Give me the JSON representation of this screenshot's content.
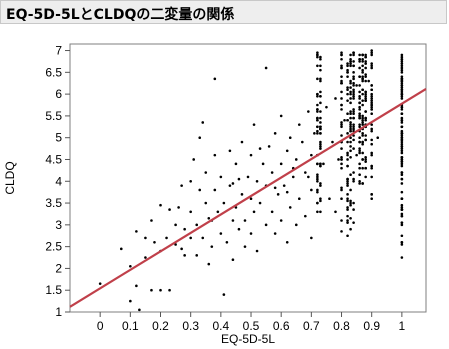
{
  "header": {
    "title": "EQ-5D-5LとCLDQの二変量の関係"
  },
  "chart_data": {
    "type": "scatter",
    "title": "EQ-5D-5LとCLDQの二変量の関係",
    "xlabel": "EQ-5D-5L",
    "ylabel": "CLDQ",
    "xlim": [
      -0.1,
      1.08
    ],
    "ylim": [
      1,
      7.15
    ],
    "x_ticks": [
      0,
      0.1,
      0.2,
      0.3,
      0.4,
      0.5,
      0.6,
      0.7,
      0.8,
      0.9,
      1
    ],
    "y_ticks": [
      1,
      1.5,
      2,
      2.5,
      3,
      3.5,
      4,
      4.5,
      5,
      5.5,
      6,
      6.5,
      7
    ],
    "x_tick_labels": [
      "0",
      "0.1",
      "0.2",
      "0.3",
      "0.4",
      "0.5",
      "0.6",
      "0.7",
      "0.8",
      "0.9",
      "1"
    ],
    "y_tick_labels": [
      "1",
      "1.5",
      "2",
      "2.5",
      "3",
      "3.5",
      "4",
      "4.5",
      "5",
      "5.5",
      "6",
      "6.5",
      "7"
    ],
    "grid": false,
    "point_color": "#000000",
    "fit_line": {
      "color": "#c0404a",
      "x": [
        -0.1,
        1.08
      ],
      "y": [
        1.12,
        6.12
      ]
    },
    "x_columns": [
      0.72,
      0.73,
      0.8,
      0.82,
      0.83,
      0.84,
      0.86,
      0.87,
      0.88,
      0.9,
      1.0
    ],
    "points": [
      [
        0,
        1.65
      ],
      [
        0.07,
        2.45
      ],
      [
        0.1,
        2.05
      ],
      [
        0.1,
        1.25
      ],
      [
        0.12,
        2.85
      ],
      [
        0.12,
        1.6
      ],
      [
        0.13,
        1.05
      ],
      [
        0.15,
        2.7
      ],
      [
        0.15,
        2.25
      ],
      [
        0.17,
        3.1
      ],
      [
        0.17,
        1.5
      ],
      [
        0.18,
        2.6
      ],
      [
        0.2,
        2.4
      ],
      [
        0.2,
        1.5
      ],
      [
        0.22,
        2.7
      ],
      [
        0.23,
        3.35
      ],
      [
        0.23,
        1.5
      ],
      [
        0.25,
        3.0
      ],
      [
        0.25,
        2.55
      ],
      [
        0.26,
        3.4
      ],
      [
        0.27,
        3.9
      ],
      [
        0.28,
        2.3
      ],
      [
        0.28,
        2.9
      ],
      [
        0.3,
        4.0
      ],
      [
        0.3,
        3.3
      ],
      [
        0.3,
        2.7
      ],
      [
        0.31,
        4.5
      ],
      [
        0.32,
        3.0
      ],
      [
        0.32,
        2.3
      ],
      [
        0.33,
        5.0
      ],
      [
        0.33,
        3.8
      ],
      [
        0.34,
        2.7
      ],
      [
        0.35,
        3.5
      ],
      [
        0.35,
        4.2
      ],
      [
        0.36,
        2.1
      ],
      [
        0.37,
        3.1
      ],
      [
        0.37,
        2.5
      ],
      [
        0.38,
        3.8
      ],
      [
        0.38,
        4.6
      ],
      [
        0.39,
        3.3
      ],
      [
        0.4,
        2.8
      ],
      [
        0.4,
        4.1
      ],
      [
        0.41,
        3.5
      ],
      [
        0.41,
        1.4
      ],
      [
        0.42,
        2.6
      ],
      [
        0.43,
        3.9
      ],
      [
        0.43,
        4.7
      ],
      [
        0.44,
        3.1
      ],
      [
        0.44,
        2.2
      ],
      [
        0.45,
        4.4
      ],
      [
        0.45,
        3.4
      ],
      [
        0.46,
        2.9
      ],
      [
        0.47,
        3.7
      ],
      [
        0.47,
        4.9
      ],
      [
        0.48,
        3.1
      ],
      [
        0.48,
        2.5
      ],
      [
        0.49,
        4.1
      ],
      [
        0.5,
        3.6
      ],
      [
        0.5,
        4.6
      ],
      [
        0.5,
        2.8
      ],
      [
        0.51,
        3.3
      ],
      [
        0.51,
        5.3
      ],
      [
        0.52,
        4.0
      ],
      [
        0.52,
        2.4
      ],
      [
        0.53,
        3.5
      ],
      [
        0.54,
        4.4
      ],
      [
        0.55,
        6.6
      ],
      [
        0.55,
        3.0
      ],
      [
        0.55,
        3.9
      ],
      [
        0.56,
        4.8
      ],
      [
        0.57,
        3.3
      ],
      [
        0.57,
        4.2
      ],
      [
        0.58,
        2.8
      ],
      [
        0.58,
        5.1
      ],
      [
        0.59,
        3.7
      ],
      [
        0.6,
        4.4
      ],
      [
        0.6,
        3.1
      ],
      [
        0.6,
        5.5
      ],
      [
        0.61,
        3.9
      ],
      [
        0.62,
        2.6
      ],
      [
        0.62,
        4.7
      ],
      [
        0.63,
        3.4
      ],
      [
        0.63,
        5.0
      ],
      [
        0.64,
        4.1
      ],
      [
        0.65,
        3.0
      ],
      [
        0.65,
        4.5
      ],
      [
        0.66,
        5.3
      ],
      [
        0.66,
        3.6
      ],
      [
        0.67,
        4.9
      ],
      [
        0.68,
        3.2
      ],
      [
        0.68,
        4.2
      ],
      [
        0.69,
        5.6
      ],
      [
        0.7,
        3.8
      ],
      [
        0.7,
        4.6
      ],
      [
        0.7,
        2.7
      ],
      [
        0.71,
        5.1
      ],
      [
        0.74,
        4.4
      ],
      [
        0.75,
        5.7
      ],
      [
        0.76,
        3.6
      ],
      [
        0.77,
        4.9
      ],
      [
        0.78,
        5.9
      ],
      [
        0.78,
        3.3
      ],
      [
        0.79,
        4.5
      ],
      [
        0.81,
        5.4
      ],
      [
        0.85,
        6.2
      ],
      [
        0.85,
        4.6
      ],
      [
        0.89,
        6.3
      ],
      [
        0.92,
        5.0
      ],
      [
        0.9,
        5.8
      ],
      [
        0.38,
        6.35
      ],
      [
        0.34,
        5.35
      ],
      [
        0.2,
        3.45
      ],
      [
        0.44,
        3.95
      ],
      [
        0.58,
        3.85
      ],
      [
        0.64,
        4.3
      ],
      [
        0.53,
        4.75
      ],
      [
        0.46,
        4.05
      ],
      [
        0.27,
        2.45
      ],
      [
        0.36,
        3.15
      ],
      [
        0.62,
        3.75
      ],
      [
        0.69,
        4.1
      ]
    ]
  }
}
